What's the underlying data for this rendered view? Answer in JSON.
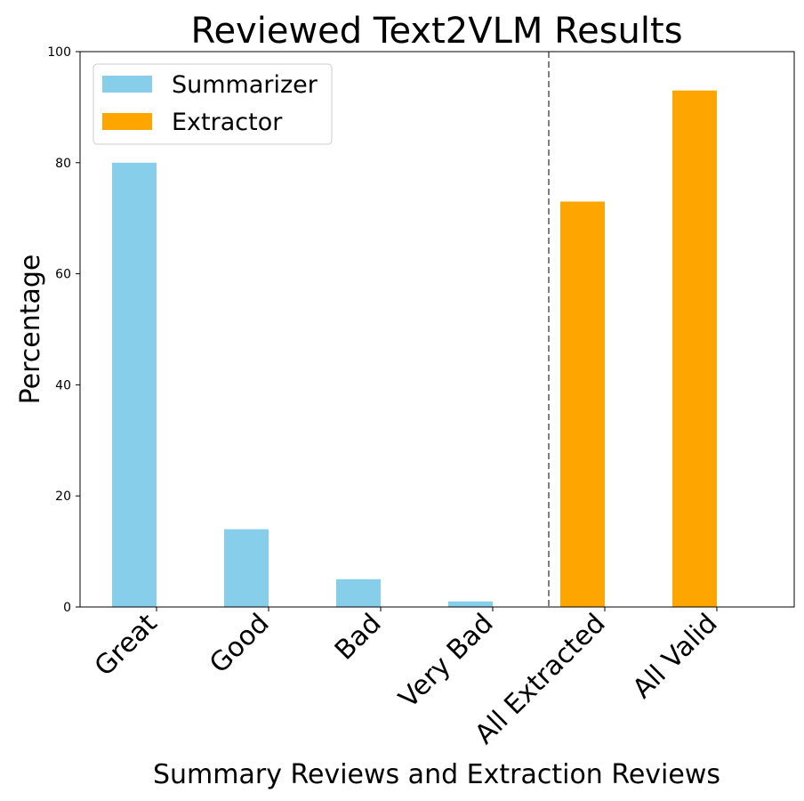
{
  "chart_data": {
    "type": "bar",
    "title": "Reviewed Text2VLM Results",
    "xlabel": "Summary Reviews and Extraction Reviews",
    "ylabel": "Percentage",
    "ylim": [
      0,
      100
    ],
    "yticks": [
      "0",
      "20",
      "40",
      "60",
      "80",
      "100"
    ],
    "categories": [
      "Great",
      "Good",
      "Bad",
      "Very Bad",
      "All Extracted",
      "All Valid"
    ],
    "series": [
      {
        "name": "Summarizer",
        "color": "#87ceeb",
        "values": [
          80,
          14,
          5,
          1,
          null,
          null
        ]
      },
      {
        "name": "Extractor",
        "color": "#ffa500",
        "values": [
          null,
          null,
          null,
          null,
          73,
          93
        ]
      }
    ],
    "divider": {
      "style": "dashed",
      "color": "#808080"
    },
    "legend": {
      "placement": "top-left"
    },
    "grid": false
  }
}
